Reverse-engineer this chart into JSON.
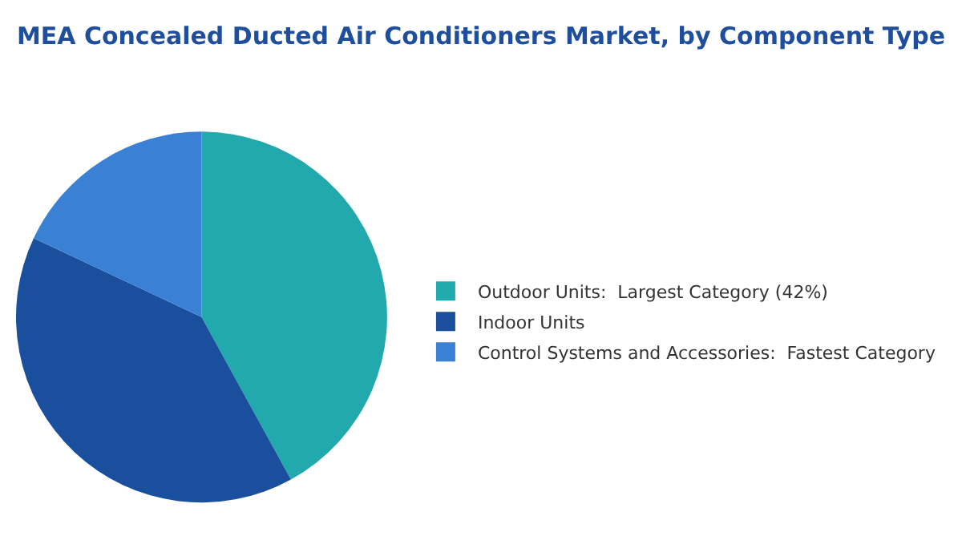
{
  "chart_data": {
    "type": "pie",
    "title": "MEA Concealed Ducted Air Conditioners Market, by Component Type",
    "categories": [
      "Outdoor Units:  Largest Category (42%)",
      "Indoor Units",
      "Control Systems and Accessories:  Fastest Category"
    ],
    "values": [
      42,
      40,
      18
    ],
    "colors": [
      "#22a9ae",
      "#1a4f9e",
      "#3a80d4"
    ],
    "legend": "right"
  }
}
